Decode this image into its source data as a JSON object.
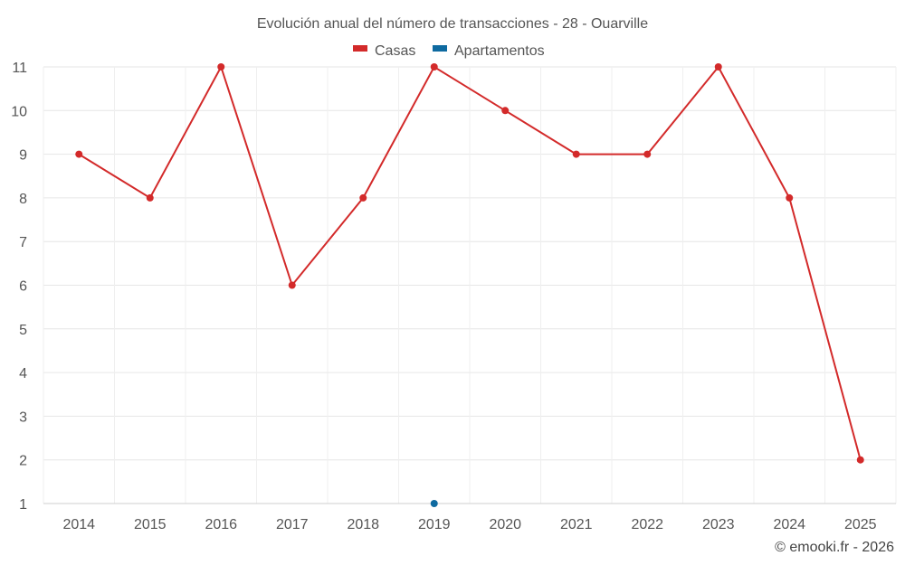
{
  "chart_data": {
    "type": "line",
    "title": "Evolución anual del número de transacciones - 28 - Ouarville",
    "categories": [
      "2014",
      "2015",
      "2016",
      "2017",
      "2018",
      "2019",
      "2020",
      "2021",
      "2022",
      "2023",
      "2024",
      "2025"
    ],
    "yticks": [
      1,
      2,
      3,
      4,
      5,
      6,
      7,
      8,
      9,
      10,
      11
    ],
    "ylim": [
      1,
      11
    ],
    "grid": true,
    "legend_position": "top-center",
    "series": [
      {
        "name": "Casas",
        "color": "#d32a2a",
        "values": [
          9,
          8,
          11,
          6,
          8,
          11,
          10,
          9,
          9,
          11,
          8,
          2
        ]
      },
      {
        "name": "Apartamentos",
        "color": "#0e6aa0",
        "values": [
          null,
          null,
          null,
          null,
          null,
          1,
          null,
          null,
          null,
          null,
          null,
          null
        ]
      }
    ]
  },
  "credit": "© emooki.fr - 2026"
}
